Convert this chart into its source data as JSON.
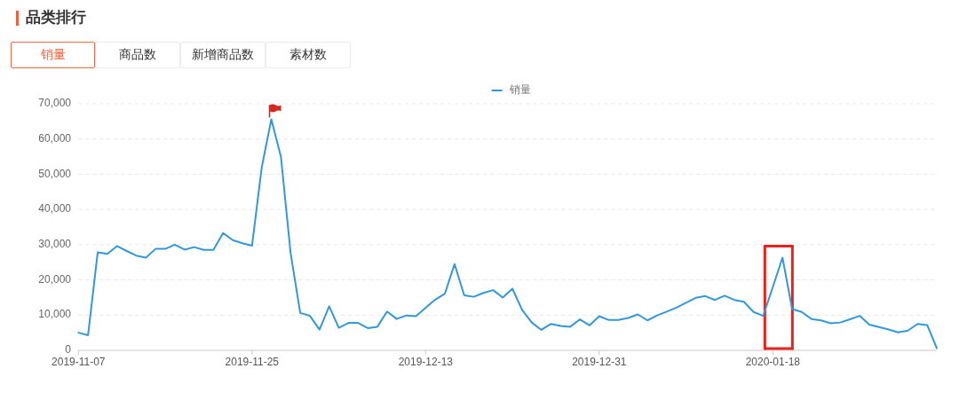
{
  "chart_data": {
    "type": "line",
    "title": "品类排行",
    "annotations": [
      "销量",
      "商品数",
      "新增商品数",
      "素材数"
    ],
    "x": [
      "2019-11-07",
      "2019-11-08",
      "2019-11-09",
      "2019-11-10",
      "2019-11-11",
      "2019-11-12",
      "2019-11-13",
      "2019-11-14",
      "2019-11-15",
      "2019-11-16",
      "2019-11-17",
      "2019-11-18",
      "2019-11-19",
      "2019-11-20",
      "2019-11-21",
      "2019-11-22",
      "2019-11-23",
      "2019-11-24",
      "2019-11-25",
      "2019-11-26",
      "2019-11-27",
      "2019-11-28",
      "2019-11-29",
      "2019-11-30",
      "2019-12-01",
      "2019-12-02",
      "2019-12-03",
      "2019-12-04",
      "2019-12-05",
      "2019-12-06",
      "2019-12-07",
      "2019-12-08",
      "2019-12-09",
      "2019-12-10",
      "2019-12-11",
      "2019-12-12",
      "2019-12-13",
      "2019-12-14",
      "2019-12-15",
      "2019-12-16",
      "2019-12-17",
      "2019-12-18",
      "2019-12-19",
      "2019-12-20",
      "2019-12-21",
      "2019-12-22",
      "2019-12-23",
      "2019-12-24",
      "2019-12-25",
      "2019-12-26",
      "2019-12-27",
      "2019-12-28",
      "2019-12-29",
      "2019-12-30",
      "2019-12-31",
      "2020-01-01",
      "2020-01-02",
      "2020-01-03",
      "2020-01-04",
      "2020-01-05",
      "2020-01-06",
      "2020-01-07",
      "2020-01-08",
      "2020-01-09",
      "2020-01-10",
      "2020-01-11",
      "2020-01-12",
      "2020-01-13",
      "2020-01-14",
      "2020-01-15",
      "2020-01-16",
      "2020-01-17",
      "2020-01-18",
      "2020-01-19",
      "2020-01-20",
      "2020-01-21",
      "2020-01-22",
      "2020-01-23",
      "2020-01-24",
      "2020-01-25",
      "2020-01-26",
      "2020-01-27",
      "2020-01-28",
      "2020-01-29",
      "2020-01-30",
      "2020-01-31",
      "2020-02-01",
      "2020-02-02",
      "2020-02-03",
      "2020-02-04"
    ],
    "series": [
      {
        "name": "销量",
        "color": "#3398db",
        "values": [
          5000,
          4300,
          27800,
          27400,
          29600,
          28200,
          26900,
          26300,
          28800,
          28800,
          30000,
          28600,
          29300,
          28500,
          28500,
          33300,
          31300,
          30400,
          29700,
          51800,
          65600,
          54900,
          27600,
          10600,
          9800,
          5900,
          12500,
          6400,
          7800,
          7800,
          6300,
          6700,
          11000,
          8900,
          9900,
          9700,
          12100,
          14400,
          16100,
          24500,
          15600,
          15200,
          16300,
          17100,
          15000,
          17500,
          11500,
          7900,
          5800,
          7500,
          6900,
          6700,
          8800,
          7100,
          9700,
          8600,
          8600,
          9200,
          10200,
          8500,
          9900,
          11000,
          12100,
          13500,
          14900,
          15400,
          14300,
          15500,
          14300,
          13800,
          10900,
          9800,
          18000,
          26300,
          11700,
          10900,
          8900,
          8500,
          7700,
          7900,
          8800,
          9800,
          7300,
          6600,
          5900,
          5100,
          5600,
          7500,
          7200,
          600
        ]
      }
    ],
    "xlim": [
      "2019-11-07",
      "2020-02-04"
    ],
    "xticks": [
      "2019-11-07",
      "2019-11-25",
      "2019-12-13",
      "2019-12-31",
      "2020-01-18"
    ],
    "ylim": [
      0,
      70000
    ],
    "yticks": [
      0,
      {
        "value": 10000,
        "label": "10,000"
      },
      {
        "value": 20000,
        "label": "20,000"
      },
      {
        "value": 30000,
        "label": "30,000"
      },
      {
        "value": 40000,
        "label": "40,000"
      },
      {
        "value": 50000,
        "label": "50,000"
      },
      {
        "value": 60000,
        "label": "60,000"
      },
      {
        "value": 70000,
        "label": "70,000"
      }
    ],
    "grid": "y",
    "legend": "top"
  }
}
